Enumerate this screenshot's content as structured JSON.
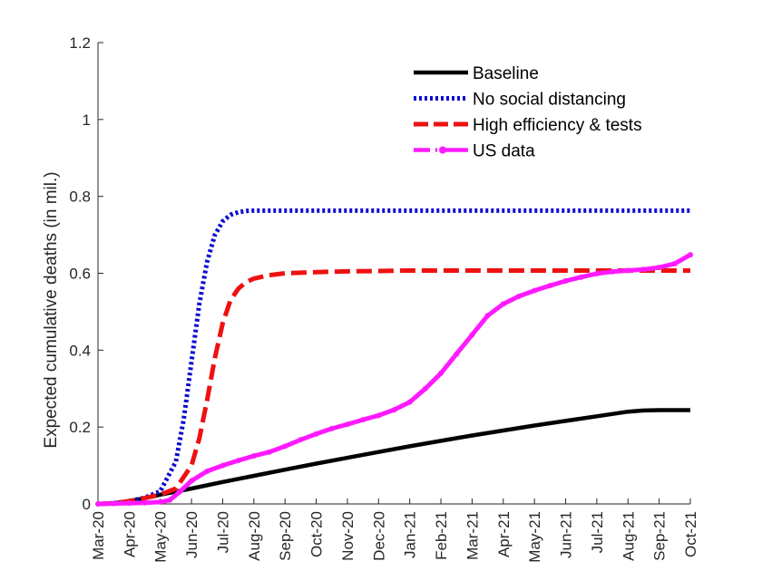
{
  "chart_data": {
    "type": "line",
    "title": "",
    "xlabel": "",
    "ylabel": "Expected cumulative deaths (in mil.)",
    "ylim": [
      0,
      1.2
    ],
    "yticks": [
      0,
      0.2,
      0.4,
      0.6,
      0.8,
      1,
      1.2
    ],
    "ytick_labels": [
      "0",
      "0.2",
      "0.4",
      "0.6",
      "0.8",
      "1",
      "1.2"
    ],
    "xlim": [
      0,
      19
    ],
    "xticks": [
      0,
      1,
      2,
      3,
      4,
      5,
      6,
      7,
      8,
      9,
      10,
      11,
      12,
      13,
      14,
      15,
      16,
      17,
      18,
      19
    ],
    "xtick_labels": [
      "Mar-20",
      "Apr-20",
      "May-20",
      "Jun-20",
      "Jul-20",
      "Aug-20",
      "Sep-20",
      "Oct-20",
      "Nov-20",
      "Dec-20",
      "Jan-21",
      "Feb-21",
      "Mar-21",
      "Apr-21",
      "May-21",
      "Jun-21",
      "Jul-21",
      "Aug-21",
      "Sep-21",
      "Oct-21"
    ],
    "grid": false,
    "legend_position": "top-right",
    "series": [
      {
        "name": "Baseline",
        "color": "#000000",
        "style": "solid",
        "x": [
          0,
          0.5,
          1,
          1.5,
          2,
          2.5,
          3,
          4,
          5,
          6,
          7,
          8,
          9,
          10,
          11,
          12,
          13,
          14,
          15,
          16,
          17,
          17.5,
          18,
          19
        ],
        "y": [
          0,
          0.002,
          0.007,
          0.015,
          0.024,
          0.032,
          0.04,
          0.057,
          0.073,
          0.089,
          0.105,
          0.12,
          0.135,
          0.15,
          0.164,
          0.178,
          0.191,
          0.204,
          0.216,
          0.228,
          0.24,
          0.243,
          0.244,
          0.244
        ]
      },
      {
        "name": "No social distancing",
        "color": "#0a0ad2",
        "style": "dotted",
        "x": [
          0,
          0.5,
          1,
          1.5,
          2,
          2.5,
          2.75,
          3,
          3.25,
          3.5,
          3.75,
          4,
          4.25,
          4.5,
          4.75,
          5,
          5.5,
          6,
          7,
          8,
          10,
          12,
          14,
          16,
          18,
          19
        ],
        "y": [
          0,
          0.002,
          0.007,
          0.016,
          0.033,
          0.11,
          0.22,
          0.37,
          0.52,
          0.63,
          0.7,
          0.735,
          0.752,
          0.759,
          0.762,
          0.763,
          0.763,
          0.763,
          0.763,
          0.763,
          0.763,
          0.763,
          0.763,
          0.763,
          0.763,
          0.763
        ]
      },
      {
        "name": "High efficiency & tests",
        "color": "#ee1111",
        "style": "dashed",
        "x": [
          0,
          0.5,
          1,
          1.5,
          2,
          2.5,
          3,
          3.25,
          3.5,
          3.75,
          4,
          4.25,
          4.5,
          4.75,
          5,
          5.5,
          6,
          7,
          8,
          9,
          10,
          12,
          14,
          16,
          18,
          19
        ],
        "y": [
          0,
          0.002,
          0.007,
          0.015,
          0.024,
          0.04,
          0.1,
          0.17,
          0.27,
          0.38,
          0.47,
          0.53,
          0.56,
          0.577,
          0.586,
          0.595,
          0.6,
          0.603,
          0.605,
          0.606,
          0.607,
          0.607,
          0.607,
          0.607,
          0.607,
          0.607
        ]
      },
      {
        "name": "US data",
        "color": "#ff1aff",
        "style": "dashdot-marker",
        "x": [
          0,
          0.5,
          1,
          1.5,
          2,
          2.3,
          2.6,
          3,
          3.5,
          4,
          4.5,
          5,
          5.5,
          6,
          6.5,
          7,
          7.5,
          8,
          8.5,
          9,
          9.5,
          10,
          10.5,
          11,
          11.5,
          12,
          12.5,
          13,
          13.5,
          14,
          14.5,
          15,
          15.5,
          16,
          16.5,
          17,
          17.5,
          18,
          18.5,
          19
        ],
        "y": [
          0,
          0.001,
          0.002,
          0.003,
          0.005,
          0.01,
          0.03,
          0.06,
          0.085,
          0.1,
          0.113,
          0.125,
          0.135,
          0.15,
          0.167,
          0.182,
          0.196,
          0.207,
          0.219,
          0.23,
          0.245,
          0.265,
          0.3,
          0.34,
          0.39,
          0.44,
          0.49,
          0.52,
          0.54,
          0.555,
          0.568,
          0.58,
          0.59,
          0.599,
          0.604,
          0.607,
          0.61,
          0.615,
          0.625,
          0.648
        ]
      }
    ]
  }
}
